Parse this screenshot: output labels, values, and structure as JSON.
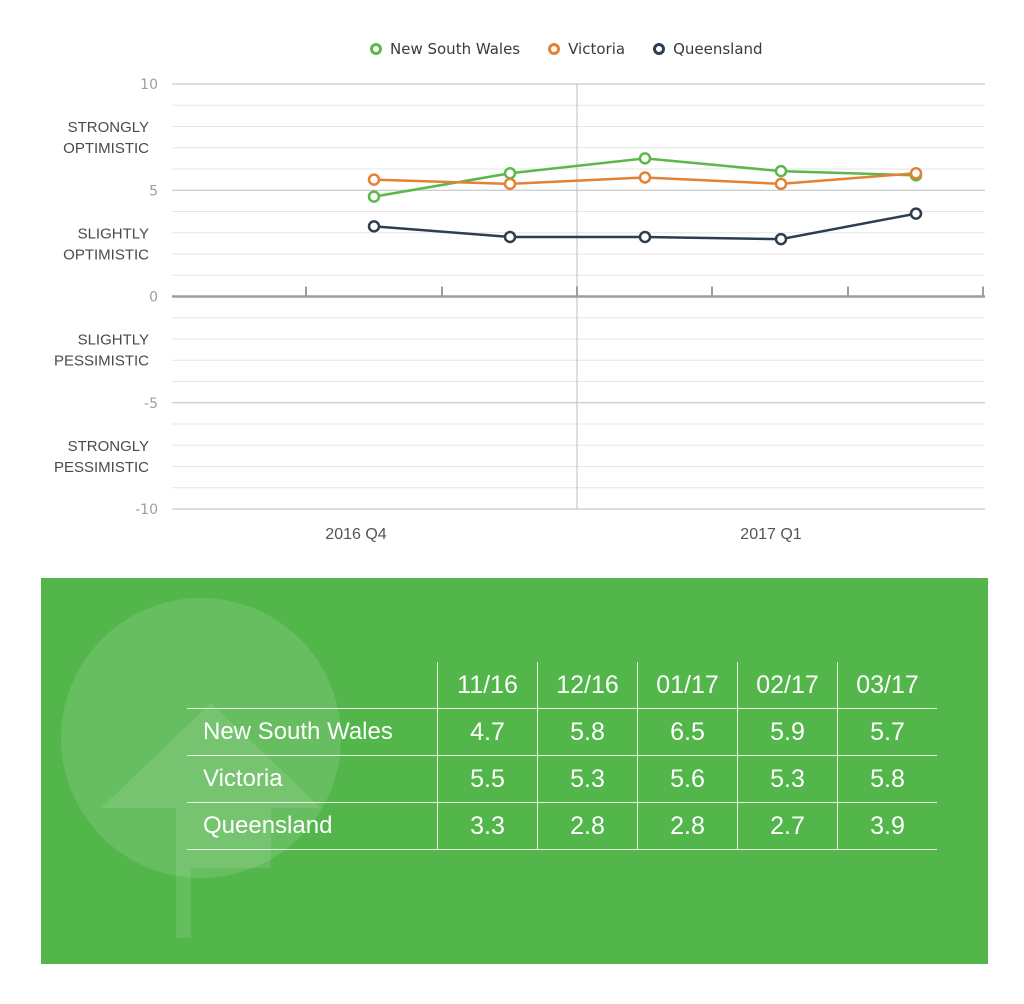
{
  "chart_data": {
    "type": "line",
    "x": [
      "11/16",
      "12/16",
      "01/17",
      "02/17",
      "03/17"
    ],
    "series": [
      {
        "name": "New South Wales",
        "color": "#5cb84a",
        "values": [
          4.7,
          5.8,
          6.5,
          5.9,
          5.7
        ]
      },
      {
        "name": "Victoria",
        "color": "#e38134",
        "values": [
          5.5,
          5.3,
          5.6,
          5.3,
          5.8
        ]
      },
      {
        "name": "Queensland",
        "color": "#2e3d4f",
        "values": [
          3.3,
          2.8,
          2.8,
          2.7,
          3.9
        ]
      }
    ],
    "ylim": [
      -10,
      10
    ],
    "yticks": [
      "10",
      "5",
      "0",
      "-5",
      "-10"
    ],
    "category_labels": [
      {
        "text": [
          "STRONGLY",
          "OPTIMISTIC"
        ],
        "y": 7.5
      },
      {
        "text": [
          "SLIGHTLY",
          "OPTIMISTIC"
        ],
        "y": 2.5
      },
      {
        "text": [
          "SLIGHTLY",
          "PESSIMISTIC"
        ],
        "y": -2.5
      },
      {
        "text": [
          "STRONGLY",
          "PESSIMISTIC"
        ],
        "y": -7.5
      }
    ],
    "quarters": [
      "2016 Q4",
      "2017 Q1"
    ],
    "legend_position": "top",
    "grid": true
  },
  "table": {
    "headers": [
      "11/16",
      "12/16",
      "01/17",
      "02/17",
      "03/17"
    ],
    "rows": [
      {
        "label": "New South Wales",
        "values": [
          "4.7",
          "5.8",
          "6.5",
          "5.9",
          "5.7"
        ]
      },
      {
        "label": "Victoria",
        "values": [
          "5.5",
          "5.3",
          "5.6",
          "5.3",
          "5.8"
        ]
      },
      {
        "label": "Queensland",
        "values": [
          "3.3",
          "2.8",
          "2.8",
          "2.7",
          "3.9"
        ]
      }
    ]
  },
  "colors": {
    "panel": "#52b64a",
    "text": "#ffffff"
  }
}
